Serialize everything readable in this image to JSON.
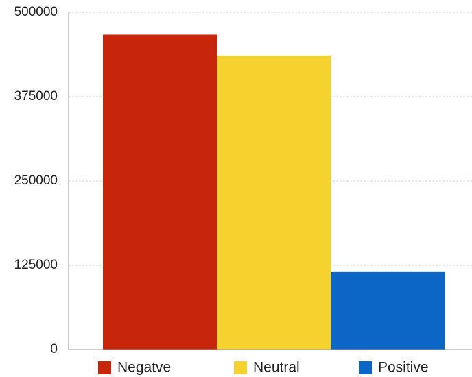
{
  "chart_data": {
    "type": "bar",
    "categories": [
      "Negatve",
      "Neutral",
      "Positive"
    ],
    "values": [
      467000,
      436000,
      115000
    ],
    "colors": [
      "#c8260a",
      "#f5d22e",
      "#0c66c6"
    ],
    "ylim": [
      0,
      500000
    ],
    "yticks": [
      0,
      125000,
      250000,
      375000,
      500000
    ],
    "ytick_labels": [
      "0",
      "125000",
      "250000",
      "375000",
      "500000"
    ],
    "grid": true,
    "legend": {
      "position": "bottom",
      "entries": [
        {
          "label": "Negatve",
          "color": "#c8260a"
        },
        {
          "label": "Neutral",
          "color": "#f5d22e"
        },
        {
          "label": "Positive",
          "color": "#0c66c6"
        }
      ]
    }
  }
}
